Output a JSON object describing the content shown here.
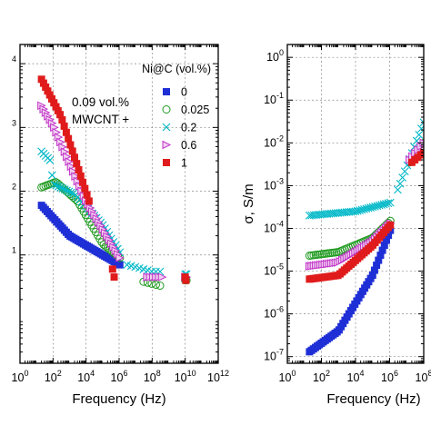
{
  "chart_data": [
    {
      "type": "scatter",
      "panel": "left",
      "xlabel": "Frequency (Hz)",
      "ylabel": "",
      "xscale": "log",
      "yscale": "log",
      "xlim": [
        1,
        1000000000000
      ],
      "ylim": [
        0.2,
        20000
      ],
      "x_ticks": [
        {
          "value": 1,
          "mant": "10",
          "exp": "0"
        },
        {
          "value": 100,
          "mant": "10",
          "exp": "2"
        },
        {
          "value": 10000,
          "mant": "10",
          "exp": "4"
        },
        {
          "value": 1000000,
          "mant": "10",
          "exp": "6"
        },
        {
          "value": 100000000,
          "mant": "10",
          "exp": "8"
        },
        {
          "value": 10000000000,
          "mant": "10",
          "exp": "10"
        },
        {
          "value": 1000000000000,
          "mant": "10",
          "exp": "12"
        }
      ],
      "y_ticks": [
        {
          "value": 10,
          "mant": "",
          "exp": "1"
        },
        {
          "value": 100,
          "mant": "",
          "exp": "2"
        },
        {
          "value": 1000,
          "mant": "",
          "exp": "3"
        },
        {
          "value": 10000,
          "mant": "",
          "exp": "4"
        }
      ],
      "grid": true,
      "legend": {
        "title": "Ni@C (vol.%)",
        "position": "top-right",
        "note_lines": [
          "0.09 vol.%",
          "MWCNT +"
        ]
      },
      "series": [
        {
          "name": "0",
          "color": "#1f2fd6",
          "marker": "square-filled",
          "segments": [
            {
              "x_start": 20,
              "x_end": 1100000,
              "count": 42,
              "anchors": [
                [
                  20,
                  60
                ],
                [
                  1000,
                  20
                ],
                [
                  100000,
                  10
                ],
                [
                  1100000,
                  7
                ]
              ]
            }
          ]
        },
        {
          "name": "0.025",
          "color": "#1f9a1f",
          "marker": "circle-open",
          "segments": [
            {
              "x_start": 20,
              "x_end": 1100000,
              "count": 40,
              "anchors": [
                [
                  20,
                  115
                ],
                [
                  150,
                  140
                ],
                [
                  3000,
                  70
                ],
                [
                  100000,
                  15
                ],
                [
                  1100000,
                  9
                ]
              ]
            },
            {
              "x_start": 30000000,
              "x_end": 300000000,
              "count": 5,
              "anchors": [
                [
                  30000000,
                  3.8
                ],
                [
                  300000000,
                  3.3
                ]
              ]
            },
            {
              "x_start": 10000000000,
              "x_end": 12000000000,
              "count": 2,
              "anchors": [
                [
                  10000000000,
                  4
                ],
                [
                  12000000000,
                  4
                ]
              ]
            }
          ]
        },
        {
          "name": "0.2",
          "color": "#00b8c8",
          "marker": "x",
          "segments": [
            {
              "x_start": 20,
              "x_end": 1100000,
              "count": 38,
              "anchors": [
                [
                  20,
                  420
                ],
                [
                  70,
                  300
                ],
                [
                  100,
                  130
                ],
                [
                  2000,
                  90
                ],
                [
                  100000,
                  30
                ],
                [
                  1100000,
                  11
                ]
              ]
            },
            {
              "x_start": 3000000,
              "x_end": 300000000,
              "count": 9,
              "anchors": [
                [
                  3000000,
                  7
                ],
                [
                  100000000,
                  5.5
                ],
                [
                  300000000,
                  5.5
                ]
              ]
            },
            {
              "x_start": 10000000000,
              "x_end": 12000000000,
              "count": 2,
              "anchors": [
                [
                  10000000000,
                  5
                ],
                [
                  12000000000,
                  5
                ]
              ]
            }
          ]
        },
        {
          "name": "0.6",
          "color": "#c233c8",
          "marker": "triangle-right",
          "segments": [
            {
              "x_start": 20,
              "x_end": 1100000,
              "count": 38,
              "anchors": [
                [
                  20,
                  2200
                ],
                [
                  100,
                  1100
                ],
                [
                  10000,
                  70
                ],
                [
                  1100000,
                  9
                ]
              ]
            },
            {
              "x_start": 50000000,
              "x_end": 400000000,
              "count": 6,
              "anchors": [
                [
                  50000000,
                  4.5
                ],
                [
                  400000000,
                  4.5
                ]
              ]
            },
            {
              "x_start": 10000000000,
              "x_end": 12000000000,
              "count": 2,
              "anchors": [
                [
                  10000000000,
                  4.5
                ],
                [
                  12000000000,
                  4.5
                ]
              ]
            }
          ]
        },
        {
          "name": "1",
          "color": "#e01b1b",
          "marker": "square-filled",
          "segments": [
            {
              "x_start": 20,
              "x_end": 15000,
              "count": 24,
              "anchors": [
                [
                  20,
                  5700
                ],
                [
                  300,
                  1500
                ],
                [
                  15000,
                  70
                ]
              ]
            },
            {
              "x_start": 400000,
              "x_end": 500000,
              "count": 2,
              "anchors": [
                [
                  400000,
                  6
                ],
                [
                  500000,
                  4.5
                ]
              ]
            },
            {
              "x_start": 10000000000,
              "x_end": 11000000000,
              "count": 2,
              "anchors": [
                [
                  10000000000,
                  4.5
                ],
                [
                  11000000000,
                  4
                ]
              ]
            }
          ]
        }
      ]
    },
    {
      "type": "scatter",
      "panel": "right",
      "xlabel": "Frequency (Hz)",
      "ylabel": "σ, S/m",
      "xscale": "log",
      "yscale": "log",
      "xlim": [
        1,
        100000000
      ],
      "ylim": [
        7e-08,
        2
      ],
      "x_ticks": [
        {
          "value": 1,
          "mant": "10",
          "exp": "0"
        },
        {
          "value": 100,
          "mant": "10",
          "exp": "2"
        },
        {
          "value": 10000,
          "mant": "10",
          "exp": "4"
        },
        {
          "value": 1000000,
          "mant": "10",
          "exp": "6"
        },
        {
          "value": 100000000,
          "mant": "10",
          "exp": "8"
        }
      ],
      "y_ticks": [
        {
          "value": 1,
          "mant": "10",
          "exp": "0"
        },
        {
          "value": 0.1,
          "mant": "10",
          "exp": "-1"
        },
        {
          "value": 0.01,
          "mant": "10",
          "exp": "-2"
        },
        {
          "value": 0.001,
          "mant": "10",
          "exp": "-3"
        },
        {
          "value": 0.0001,
          "mant": "10",
          "exp": "-4"
        },
        {
          "value": 1e-05,
          "mant": "10",
          "exp": "-5"
        },
        {
          "value": 1e-06,
          "mant": "10",
          "exp": "-6"
        },
        {
          "value": 1e-07,
          "mant": "10",
          "exp": "-7"
        }
      ],
      "grid": true,
      "series": [
        {
          "name": "0",
          "color": "#1f2fd6",
          "marker": "square-filled",
          "segments": [
            {
              "x_start": 20,
              "x_end": 1100000,
              "count": 42,
              "anchors": [
                [
                  20,
                  1.3e-07
                ],
                [
                  1000,
                  4e-07
                ],
                [
                  100000,
                  8e-06
                ],
                [
                  1100000,
                  9e-05
                ]
              ]
            }
          ]
        },
        {
          "name": "0.025",
          "color": "#1f9a1f",
          "marker": "circle-open",
          "segments": [
            {
              "x_start": 20,
              "x_end": 1100000,
              "count": 40,
              "anchors": [
                [
                  20,
                  2.3e-05
                ],
                [
                  1000,
                  2.8e-05
                ],
                [
                  100000,
                  6e-05
                ],
                [
                  1100000,
                  0.00015
                ]
              ]
            },
            {
              "x_start": 15000000,
              "x_end": 100000000,
              "count": 6,
              "anchors": [
                [
                  15000000,
                  0.0035
                ],
                [
                  100000000,
                  0.01
                ]
              ]
            }
          ]
        },
        {
          "name": "0.2",
          "color": "#00b8c8",
          "marker": "x",
          "segments": [
            {
              "x_start": 20,
              "x_end": 1100000,
              "count": 38,
              "anchors": [
                [
                  20,
                  0.0002
                ],
                [
                  10000,
                  0.00025
                ],
                [
                  1100000,
                  0.0004
                ]
              ]
            },
            {
              "x_start": 3000000,
              "x_end": 100000000,
              "count": 12,
              "anchors": [
                [
                  3000000,
                  0.0008
                ],
                [
                  100000000,
                  0.03
                ]
              ]
            }
          ]
        },
        {
          "name": "0.6",
          "color": "#c233c8",
          "marker": "triangle-right",
          "segments": [
            {
              "x_start": 20,
              "x_end": 1100000,
              "count": 38,
              "anchors": [
                [
                  20,
                  1.3e-05
                ],
                [
                  1000,
                  1.6e-05
                ],
                [
                  100000,
                  5e-05
                ],
                [
                  1100000,
                  0.00013
                ]
              ]
            },
            {
              "x_start": 15000000,
              "x_end": 100000000,
              "count": 6,
              "anchors": [
                [
                  15000000,
                  0.004
                ],
                [
                  100000000,
                  0.01
                ]
              ]
            }
          ]
        },
        {
          "name": "1",
          "color": "#e01b1b",
          "marker": "square-filled",
          "segments": [
            {
              "x_start": 20,
              "x_end": 1100000,
              "count": 38,
              "anchors": [
                [
                  20,
                  6.5e-06
                ],
                [
                  1000,
                  8e-06
                ],
                [
                  100000,
                  4e-05
                ],
                [
                  1100000,
                  0.00012
                ]
              ]
            },
            {
              "x_start": 20000000,
              "x_end": 100000000,
              "count": 5,
              "anchors": [
                [
                  20000000,
                  0.0035
                ],
                [
                  100000000,
                  0.006
                ]
              ]
            }
          ]
        }
      ]
    }
  ]
}
